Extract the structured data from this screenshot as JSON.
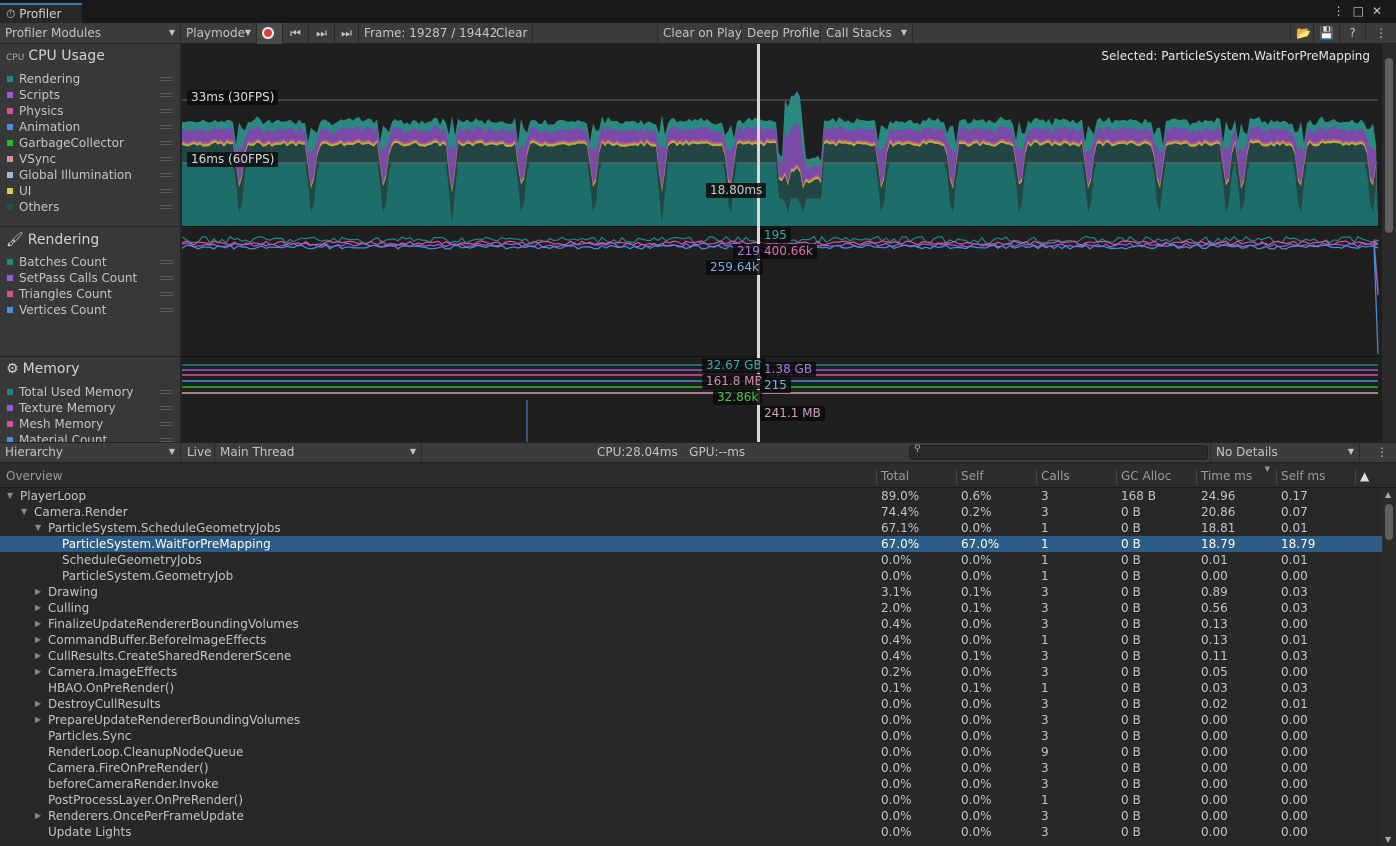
{
  "window": {
    "tab_title": "Profiler",
    "menu_icon": "kebab-icon",
    "maximize_icon": "maximize-icon",
    "close_icon": "close-icon"
  },
  "toolbar": {
    "modules": "Profiler Modules",
    "target": "Playmode",
    "frame": "Frame: 19287 / 19442",
    "clear": "Clear",
    "clear_on_play": "Clear on Play",
    "deep_profile": "Deep Profile",
    "call_stacks": "Call Stacks"
  },
  "selected_label": "Selected: ParticleSystem.WaitForPreMapping",
  "modules": [
    {
      "title": "CPU Usage",
      "icon": "cpu-icon",
      "items": [
        {
          "label": "Rendering",
          "color": "#1e8a84"
        },
        {
          "label": "Scripts",
          "color": "#9b5ad6"
        },
        {
          "label": "Physics",
          "color": "#d8519c"
        },
        {
          "label": "Animation",
          "color": "#4a90d9"
        },
        {
          "label": "GarbageCollector",
          "color": "#1fc21f"
        },
        {
          "label": "VSync",
          "color": "#d88ab0"
        },
        {
          "label": "Global Illumination",
          "color": "#9abcd8"
        },
        {
          "label": "UI",
          "color": "#d4cf4a"
        },
        {
          "label": "Others",
          "color": "#1f5551"
        }
      ]
    },
    {
      "title": "Rendering",
      "icon": "rendering-icon",
      "items": [
        {
          "label": "Batches Count",
          "color": "#1e8a84"
        },
        {
          "label": "SetPass Calls Count",
          "color": "#9b5ad6"
        },
        {
          "label": "Triangles Count",
          "color": "#d8519c"
        },
        {
          "label": "Vertices Count",
          "color": "#4a90d9"
        }
      ]
    },
    {
      "title": "Memory",
      "icon": "memory-chip-icon",
      "items": [
        {
          "label": "Total Used Memory",
          "color": "#1e8a84"
        },
        {
          "label": "Texture Memory",
          "color": "#9b5ad6"
        },
        {
          "label": "Mesh Memory",
          "color": "#d8519c"
        },
        {
          "label": "Material Count",
          "color": "#4a90d9"
        }
      ]
    }
  ],
  "cpu_chart": {
    "line_33": "33ms (30FPS)",
    "line_16": "16ms (60FPS)",
    "selected_value": "18.80ms"
  },
  "rendering_chart": {
    "batches": "195",
    "setpass": "219",
    "triangles": "400.66k",
    "vertices": "259.64k"
  },
  "memory_chart": {
    "total_used": "32.67 GB",
    "texture": "1.38 GB",
    "mesh": "161.8 MB",
    "material_count": "215",
    "object_count": "32.86k",
    "gc": "241.1 MB"
  },
  "details_toolbar": {
    "view": "Hierarchy",
    "live": "Live",
    "thread": "Main Thread",
    "stats": "CPU:28.04ms   GPU:--ms",
    "search_placeholder": "",
    "details": "No Details"
  },
  "columns": [
    "Overview",
    "Total",
    "Self",
    "Calls",
    "GC Alloc",
    "Time ms",
    "Self ms"
  ],
  "sorted_column": "Time ms",
  "rows": [
    {
      "name": "PlayerLoop",
      "level": 0,
      "arrow": "down",
      "total": "89.0%",
      "self": "0.6%",
      "calls": "3",
      "gc": "168 B",
      "time": "24.96",
      "selfms": "0.17"
    },
    {
      "name": "Camera.Render",
      "level": 1,
      "arrow": "down",
      "total": "74.4%",
      "self": "0.2%",
      "calls": "3",
      "gc": "0 B",
      "time": "20.86",
      "selfms": "0.07"
    },
    {
      "name": "ParticleSystem.ScheduleGeometryJobs",
      "level": 2,
      "arrow": "down",
      "total": "67.1%",
      "self": "0.0%",
      "calls": "1",
      "gc": "0 B",
      "time": "18.81",
      "selfms": "0.01"
    },
    {
      "name": "ParticleSystem.WaitForPreMapping",
      "level": 3,
      "arrow": "",
      "total": "67.0%",
      "self": "67.0%",
      "calls": "1",
      "gc": "0 B",
      "time": "18.79",
      "selfms": "18.79",
      "selected": true
    },
    {
      "name": "ScheduleGeometryJobs",
      "level": 3,
      "arrow": "",
      "total": "0.0%",
      "self": "0.0%",
      "calls": "1",
      "gc": "0 B",
      "time": "0.01",
      "selfms": "0.01"
    },
    {
      "name": "ParticleSystem.GeometryJob",
      "level": 3,
      "arrow": "",
      "total": "0.0%",
      "self": "0.0%",
      "calls": "1",
      "gc": "0 B",
      "time": "0.00",
      "selfms": "0.00"
    },
    {
      "name": "Drawing",
      "level": 2,
      "arrow": "right",
      "total": "3.1%",
      "self": "0.1%",
      "calls": "3",
      "gc": "0 B",
      "time": "0.89",
      "selfms": "0.03"
    },
    {
      "name": "Culling",
      "level": 2,
      "arrow": "right",
      "total": "2.0%",
      "self": "0.1%",
      "calls": "3",
      "gc": "0 B",
      "time": "0.56",
      "selfms": "0.03"
    },
    {
      "name": "FinalizeUpdateRendererBoundingVolumes",
      "level": 2,
      "arrow": "right",
      "total": "0.4%",
      "self": "0.0%",
      "calls": "3",
      "gc": "0 B",
      "time": "0.13",
      "selfms": "0.00"
    },
    {
      "name": "CommandBuffer.BeforeImageEffects",
      "level": 2,
      "arrow": "right",
      "total": "0.4%",
      "self": "0.0%",
      "calls": "1",
      "gc": "0 B",
      "time": "0.13",
      "selfms": "0.01"
    },
    {
      "name": "CullResults.CreateSharedRendererScene",
      "level": 2,
      "arrow": "right",
      "total": "0.4%",
      "self": "0.1%",
      "calls": "3",
      "gc": "0 B",
      "time": "0.11",
      "selfms": "0.03"
    },
    {
      "name": "Camera.ImageEffects",
      "level": 2,
      "arrow": "right",
      "total": "0.2%",
      "self": "0.0%",
      "calls": "3",
      "gc": "0 B",
      "time": "0.05",
      "selfms": "0.00"
    },
    {
      "name": "HBAO.OnPreRender()",
      "level": 2,
      "arrow": "",
      "total": "0.1%",
      "self": "0.1%",
      "calls": "1",
      "gc": "0 B",
      "time": "0.03",
      "selfms": "0.03"
    },
    {
      "name": "DestroyCullResults",
      "level": 2,
      "arrow": "right",
      "total": "0.0%",
      "self": "0.0%",
      "calls": "3",
      "gc": "0 B",
      "time": "0.02",
      "selfms": "0.01"
    },
    {
      "name": "PrepareUpdateRendererBoundingVolumes",
      "level": 2,
      "arrow": "right",
      "total": "0.0%",
      "self": "0.0%",
      "calls": "3",
      "gc": "0 B",
      "time": "0.00",
      "selfms": "0.00"
    },
    {
      "name": "Particles.Sync",
      "level": 2,
      "arrow": "",
      "total": "0.0%",
      "self": "0.0%",
      "calls": "3",
      "gc": "0 B",
      "time": "0.00",
      "selfms": "0.00"
    },
    {
      "name": "RenderLoop.CleanupNodeQueue",
      "level": 2,
      "arrow": "",
      "total": "0.0%",
      "self": "0.0%",
      "calls": "9",
      "gc": "0 B",
      "time": "0.00",
      "selfms": "0.00"
    },
    {
      "name": "Camera.FireOnPreRender()",
      "level": 2,
      "arrow": "",
      "total": "0.0%",
      "self": "0.0%",
      "calls": "3",
      "gc": "0 B",
      "time": "0.00",
      "selfms": "0.00"
    },
    {
      "name": "beforeCameraRender.Invoke",
      "level": 2,
      "arrow": "",
      "total": "0.0%",
      "self": "0.0%",
      "calls": "3",
      "gc": "0 B",
      "time": "0.00",
      "selfms": "0.00"
    },
    {
      "name": "PostProcessLayer.OnPreRender()",
      "level": 2,
      "arrow": "",
      "total": "0.0%",
      "self": "0.0%",
      "calls": "1",
      "gc": "0 B",
      "time": "0.00",
      "selfms": "0.00"
    },
    {
      "name": "Renderers.OncePerFrameUpdate",
      "level": 2,
      "arrow": "right",
      "total": "0.0%",
      "self": "0.0%",
      "calls": "3",
      "gc": "0 B",
      "time": "0.00",
      "selfms": "0.00"
    },
    {
      "name": "Update Lights",
      "level": 2,
      "arrow": "",
      "total": "0.0%",
      "self": "0.0%",
      "calls": "3",
      "gc": "0 B",
      "time": "0.00",
      "selfms": "0.00"
    }
  ]
}
